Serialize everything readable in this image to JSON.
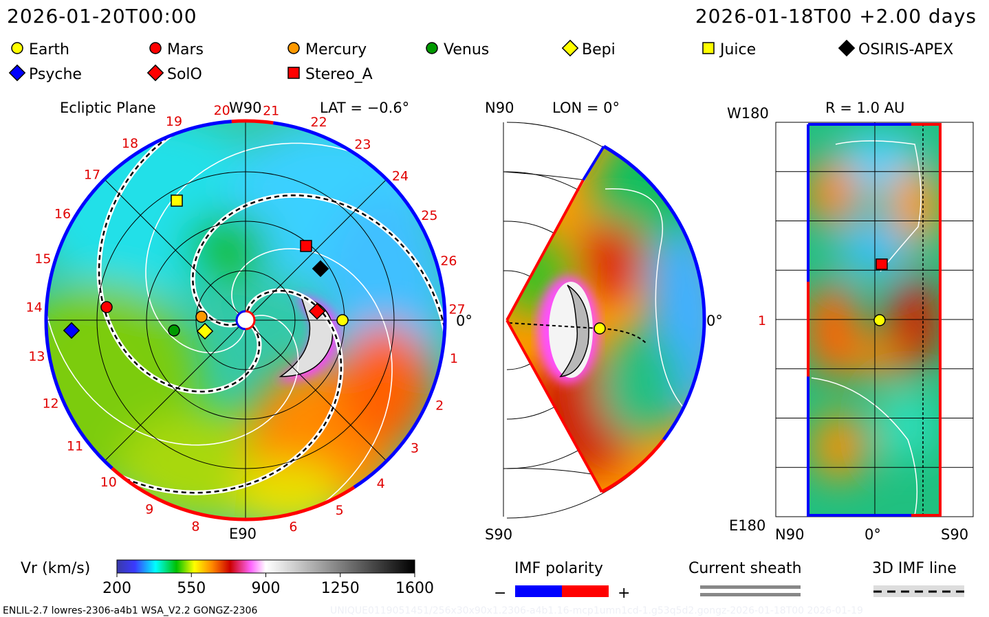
{
  "header": {
    "left_time": "2026-01-20T00:00",
    "right_time": "2026-01-18T00 +2.00 days"
  },
  "legend": [
    {
      "name": "Earth",
      "shape": "circle",
      "color": "#ffff00"
    },
    {
      "name": "Mars",
      "shape": "circle",
      "color": "#ff0000"
    },
    {
      "name": "Mercury",
      "shape": "circle",
      "color": "#ff9900"
    },
    {
      "name": "Venus",
      "shape": "circle",
      "color": "#009900"
    },
    {
      "name": "Bepi",
      "shape": "diamond",
      "color": "#ffff00"
    },
    {
      "name": "Juice",
      "shape": "square",
      "color": "#ffff00"
    },
    {
      "name": "OSIRIS-APEX",
      "shape": "diamond",
      "color": "#000000"
    },
    {
      "name": "Psyche",
      "shape": "diamond",
      "color": "#0000ff"
    },
    {
      "name": "SolO",
      "shape": "diamond",
      "color": "#ff0000"
    },
    {
      "name": "Stereo_A",
      "shape": "square",
      "color": "#ff0000"
    }
  ],
  "ecliptic": {
    "title": "Ecliptic Plane",
    "lat": "LAT = −0.6°",
    "top_label": "W90",
    "bottom_label": "E90",
    "zero_label": "0°",
    "day_labels": [
      "1",
      "2",
      "3",
      "4",
      "5",
      "6",
      "8",
      "9",
      "10",
      "11",
      "12",
      "13",
      "14",
      "15",
      "16",
      "17",
      "18",
      "19",
      "20",
      "21",
      "22",
      "23",
      "24",
      "25",
      "26",
      "27"
    ]
  },
  "meridional": {
    "lon": "LON = 0°",
    "north": "N90",
    "south": "S90",
    "zero": "0°"
  },
  "shell": {
    "r": "R = 1.0 AU",
    "top": "W180",
    "bottom": "E180",
    "mid": "1",
    "x_left": "N90",
    "x_mid": "0°",
    "x_right": "S90"
  },
  "colorbar": {
    "label": "Vr (km/s)",
    "ticks": [
      "200",
      "550",
      "900",
      "1250",
      "1600"
    ],
    "range": [
      200,
      1600
    ]
  },
  "imf": {
    "label": "IMF polarity",
    "minus": "−",
    "plus": "+",
    "neg_color": "#0000ff",
    "pos_color": "#ff0000"
  },
  "sheath": {
    "label": "Current sheath"
  },
  "imfline": {
    "label": "3D IMF line"
  },
  "footer": {
    "model": "ENLIL-2.7 lowres-2306-a4b1 WSA_V2.2 GONGZ-2306",
    "run": "UNIQUE0119051451/256x30x90x1.2306-a4b1.16-mcp1umn1cd-1.g53q5d2.gongz-2026-01-18T00   2026-01-19"
  }
}
